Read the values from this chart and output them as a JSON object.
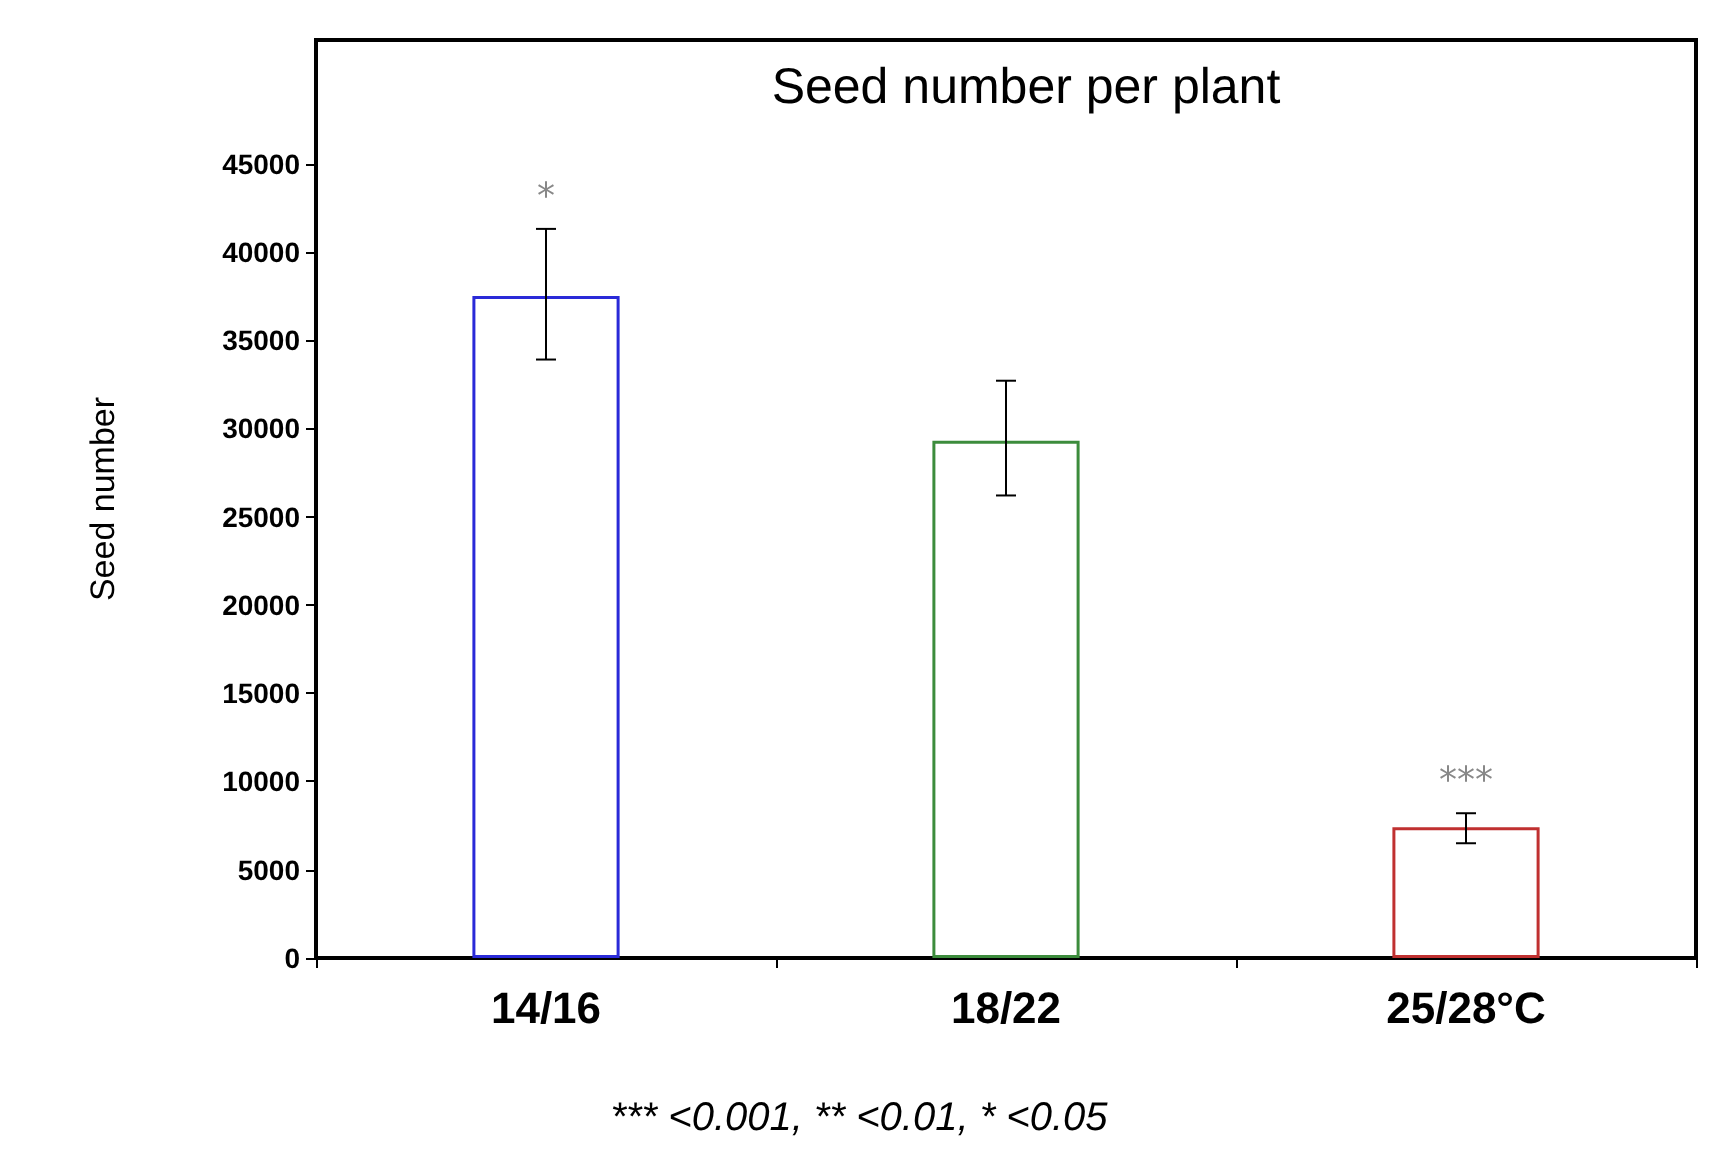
{
  "chart_data": {
    "type": "bar",
    "title": "Seed number per plant",
    "ylabel": "Seed number",
    "categories": [
      "14/16",
      "18/22",
      "25/28°C"
    ],
    "values": [
      37500,
      29300,
      7400
    ],
    "colors": [
      "#2a2ad8",
      "#3c8c3c",
      "#c03030"
    ],
    "errors": [
      [
        33900,
        41300
      ],
      [
        26200,
        32700
      ],
      [
        6500,
        8200
      ]
    ],
    "ylim": [
      0,
      52000
    ],
    "yticks": [
      0,
      5000,
      10000,
      15000,
      20000,
      25000,
      30000,
      35000,
      40000,
      45000
    ],
    "value_labels": [
      "*",
      null,
      "***"
    ],
    "grid": false,
    "annotations": [
      "*** <0.001, ** <0.01, * <0.05"
    ]
  }
}
